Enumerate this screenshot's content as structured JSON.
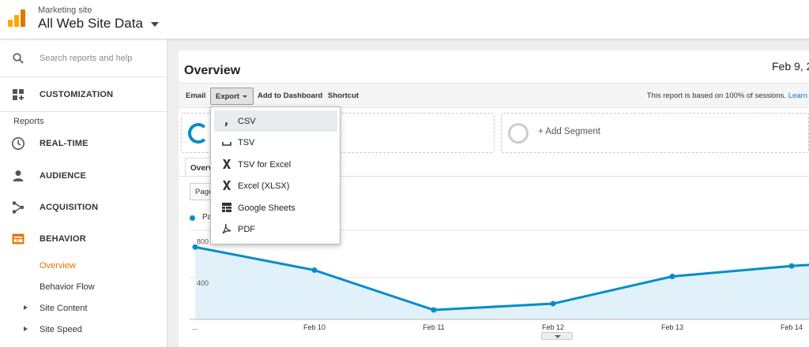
{
  "header": {
    "account": "Marketing site",
    "view": "All Web Site Data"
  },
  "sidebar": {
    "search_placeholder": "Search reports and help",
    "customization": "CUSTOMIZATION",
    "reports_heading": "Reports",
    "items": [
      {
        "label": "REAL-TIME",
        "icon": "clock-icon"
      },
      {
        "label": "AUDIENCE",
        "icon": "person-icon"
      },
      {
        "label": "ACQUISITION",
        "icon": "acquisition-icon"
      },
      {
        "label": "BEHAVIOR",
        "icon": "behavior-icon"
      }
    ],
    "behavior_sub": {
      "overview": "Overview",
      "flow": "Behavior Flow",
      "site_content": "Site Content",
      "site_speed": "Site Speed"
    }
  },
  "main": {
    "title": "Overview",
    "date": "Feb 9, 2",
    "toolbar": {
      "email": "Email",
      "export": "Export",
      "add_dashboard": "Add to Dashboard",
      "shortcut": "Shortcut",
      "note": "This report is based on 100% of sessions.",
      "learn": "Learn"
    },
    "add_segment": "+ Add Segment",
    "tab": "Overview",
    "metric_button": "Pageviews",
    "legend": "Pageviews"
  },
  "export_menu": {
    "items": [
      {
        "label": "CSV",
        "icon": "csv-comma-icon",
        "selected": true
      },
      {
        "label": "TSV",
        "icon": "tsv-space-icon",
        "selected": false
      },
      {
        "label": "TSV for Excel",
        "icon": "excel-x-icon",
        "selected": false
      },
      {
        "label": "Excel (XLSX)",
        "icon": "excel-x-icon",
        "selected": false
      },
      {
        "label": "Google Sheets",
        "icon": "sheets-grid-icon",
        "selected": false
      },
      {
        "label": "PDF",
        "icon": "pdf-icon",
        "selected": false
      }
    ]
  },
  "chart_data": {
    "type": "area",
    "x": [
      "...",
      "Feb 10",
      "Feb 11",
      "Feb 12",
      "Feb 13",
      "Feb 14",
      ""
    ],
    "series": [
      {
        "values": [
          690,
          470,
          90,
          150,
          410,
          510,
          520
        ]
      }
    ],
    "ylim": [
      0,
      850
    ],
    "yticks": [
      "800",
      "400"
    ],
    "xlabel": "",
    "ylabel": "",
    "grid": true,
    "colors": {
      "line": "#058dc7",
      "fill": "#e1f1f9"
    }
  }
}
